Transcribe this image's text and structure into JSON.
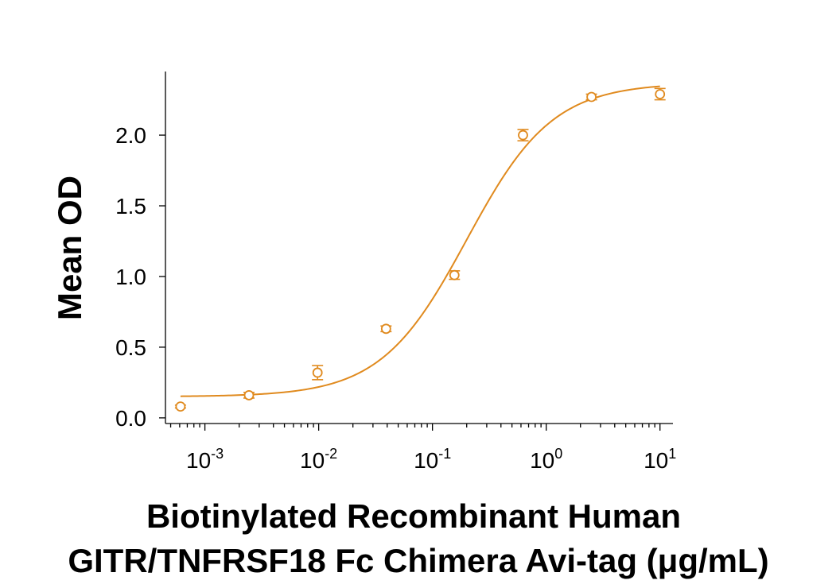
{
  "chart_data": {
    "type": "scatter",
    "x_scale": "log",
    "xlabel_lines": [
      "Biotinylated Recombinant Human",
      "GITR/TNFRSF18 Fc Chimera Avi-tag (μg/mL)"
    ],
    "ylabel": "Mean OD",
    "xlim": [
      0.00045,
      13
    ],
    "ylim": [
      -0.04,
      2.45
    ],
    "x_ticks": [
      {
        "value": 0.001,
        "base": "10",
        "exp": "-3"
      },
      {
        "value": 0.01,
        "base": "10",
        "exp": "-2"
      },
      {
        "value": 0.1,
        "base": "10",
        "exp": "-1"
      },
      {
        "value": 1,
        "base": "10",
        "exp": "0"
      },
      {
        "value": 10,
        "base": "10",
        "exp": "1"
      }
    ],
    "y_ticks": [
      {
        "value": 0.0,
        "label": "0.0"
      },
      {
        "value": 0.5,
        "label": "0.5"
      },
      {
        "value": 1.0,
        "label": "1.0"
      },
      {
        "value": 1.5,
        "label": "1.5"
      },
      {
        "value": 2.0,
        "label": "2.0"
      }
    ],
    "series": [
      {
        "x": [
          0.00061,
          0.00244,
          0.00977,
          0.0391,
          0.156,
          0.625,
          2.5,
          10
        ],
        "y": [
          0.08,
          0.16,
          0.32,
          0.63,
          1.01,
          2.0,
          2.27,
          2.29
        ],
        "err": [
          0.01,
          0.02,
          0.05,
          0.02,
          0.03,
          0.04,
          0.02,
          0.04
        ],
        "color": "#E08A1E",
        "marker": "open-circle"
      }
    ],
    "fit_curve": {
      "model": "4PL",
      "bottom": 0.15,
      "top": 2.37,
      "ec50": 0.2,
      "hill": 1.15,
      "color": "#E08A1E"
    },
    "grid": false
  }
}
